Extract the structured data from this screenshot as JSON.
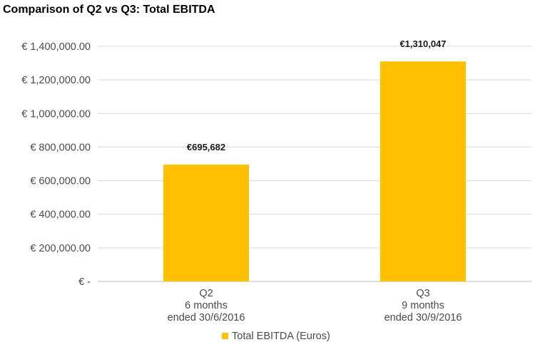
{
  "colors": {
    "bar": "#FFC000",
    "grid": "#d9d9d9",
    "axis": "#bfbfbf"
  },
  "chart_data": {
    "type": "bar",
    "title": "Comparison of Q2 vs Q3: Total EBITDA",
    "categories": [
      [
        "Q2",
        "6 months",
        "ended 30/6/2016"
      ],
      [
        "Q3",
        "9 months",
        "ended 30/9/2016"
      ]
    ],
    "series": [
      {
        "name": "Total EBITDA (Euros)",
        "values": [
          695682,
          1310047
        ],
        "data_labels": [
          "€695,682",
          "€1,310,047"
        ]
      }
    ],
    "ylim": [
      0,
      1400000
    ],
    "yticks": [
      0,
      200000,
      400000,
      600000,
      800000,
      1000000,
      1200000,
      1400000
    ],
    "ytick_labels": [
      "€ -",
      "€ 200,000.00",
      "€ 400,000.00",
      "€ 600,000.00",
      "€ 800,000.00",
      "€ 1,000,000.00",
      "€ 1,200,000.00",
      "€ 1,400,000.00"
    ],
    "grid": true,
    "legend_position": "bottom"
  }
}
